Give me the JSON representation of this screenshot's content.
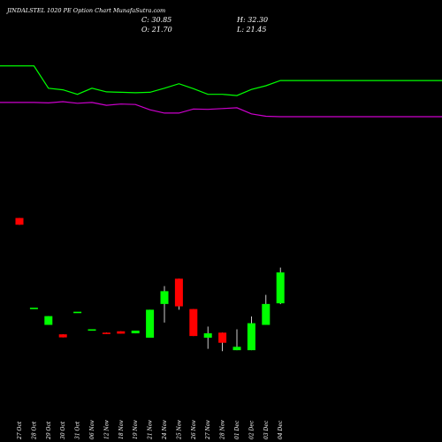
{
  "header": {
    "title": "JINDALSTEL 1020 PE Option Chart MunafaSutra.com",
    "close": "C: 30.85",
    "open": "O: 21.70",
    "high": "H: 32.30",
    "low": "L: 21.45"
  },
  "colors": {
    "background": "#000000",
    "up": "#00ff00",
    "down": "#ff0000",
    "upper_line": "#00ff00",
    "lower_line": "#cc00cc",
    "text": "#ffffff"
  },
  "chart_data": {
    "type": "candlestick",
    "x": [
      "27 Oct",
      "28 Oct",
      "29 Oct",
      "30 Oct",
      "31 Oct",
      "06 Nov",
      "12 Nov",
      "18 Nov",
      "19 Nov",
      "21 Nov",
      "24 Nov",
      "25 Nov",
      "26 Nov",
      "27 Nov",
      "28 Nov",
      "01 Dec",
      "02 Dec",
      "03 Dec",
      "04 Dec"
    ],
    "candles": [
      {
        "open": 47.0,
        "high": 47.0,
        "low": 45.0,
        "close": 45.0
      },
      {
        "open": 20.4,
        "high": 20.4,
        "low": 20.4,
        "close": 20.4
      },
      {
        "open": 15.3,
        "high": 17.9,
        "low": 15.3,
        "close": 17.9
      },
      {
        "open": 12.5,
        "high": 12.5,
        "low": 11.6,
        "close": 11.6
      },
      {
        "open": 19.2,
        "high": 19.2,
        "low": 19.2,
        "close": 19.2
      },
      {
        "open": 13.8,
        "high": 14.0,
        "low": 13.8,
        "close": 14.0
      },
      {
        "open": 13.0,
        "high": 13.0,
        "low": 12.8,
        "close": 12.8
      },
      {
        "open": 13.4,
        "high": 13.4,
        "low": 12.7,
        "close": 12.7
      },
      {
        "open": 12.8,
        "high": 13.6,
        "low": 12.8,
        "close": 13.6
      },
      {
        "open": 11.5,
        "high": 19.8,
        "low": 11.5,
        "close": 19.8
      },
      {
        "open": 21.5,
        "high": 26.8,
        "low": 16.0,
        "close": 25.3
      },
      {
        "open": 29.0,
        "high": 29.0,
        "low": 19.8,
        "close": 20.8
      },
      {
        "open": 20.0,
        "high": 20.0,
        "low": 12.0,
        "close": 12.0
      },
      {
        "open": 11.5,
        "high": 14.8,
        "low": 8.2,
        "close": 12.8
      },
      {
        "open": 13.0,
        "high": 13.0,
        "low": 7.5,
        "close": 10.0
      },
      {
        "open": 7.8,
        "high": 14.0,
        "low": 7.8,
        "close": 8.8
      },
      {
        "open": 7.8,
        "high": 17.8,
        "low": 7.8,
        "close": 15.8
      },
      {
        "open": 15.3,
        "high": 24.2,
        "low": 15.3,
        "close": 21.5
      },
      {
        "open": 21.7,
        "high": 32.3,
        "low": 21.45,
        "close": 30.85
      }
    ],
    "upper_line": [
      425,
      425,
      370,
      366,
      355,
      370,
      361,
      360,
      359,
      360,
      370,
      381,
      369,
      355,
      355,
      352,
      367,
      376,
      389
    ],
    "lower_line": [
      335,
      335,
      334,
      337,
      333,
      335,
      328,
      331,
      330,
      317,
      309,
      309,
      319,
      318,
      320,
      322,
      307,
      301,
      300
    ],
    "ylim": [
      0,
      500
    ]
  }
}
